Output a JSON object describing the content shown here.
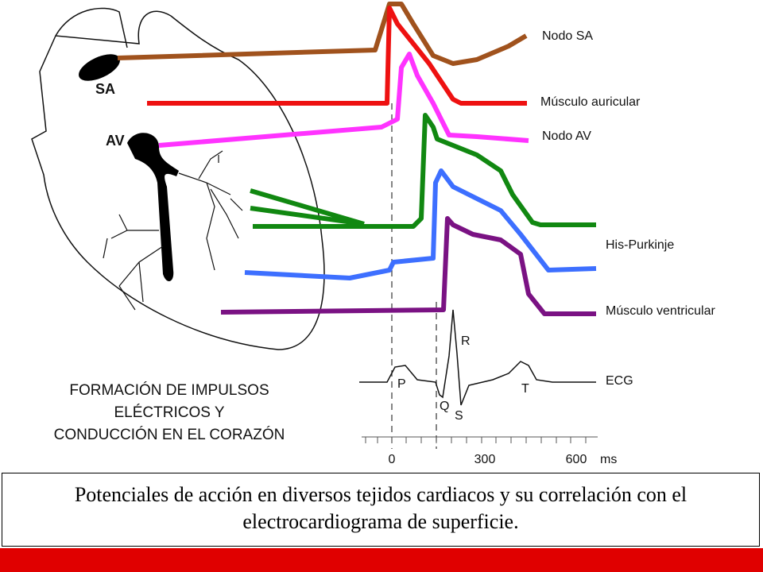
{
  "heart_labels": [
    "SA",
    "AV"
  ],
  "traces": [
    "Nodo SA",
    "Músculo auricular",
    "Nodo AV",
    "His-Purkinje",
    "Músculo ventricular",
    "ECG"
  ],
  "ecg_waves": [
    "P",
    "Q",
    "R",
    "S",
    "T"
  ],
  "axis": {
    "ticks": [
      0,
      300,
      600
    ],
    "unit": "ms"
  },
  "title": [
    "FORMACIÓN DE IMPULSOS",
    "ELÉCTRICOS Y",
    "CONDUCCIÓN EN EL CORAZÓN"
  ],
  "caption": "Potenciales de acción en diversos tejidos cardiacos y su correlación con el electrocardiograma de superficie."
}
